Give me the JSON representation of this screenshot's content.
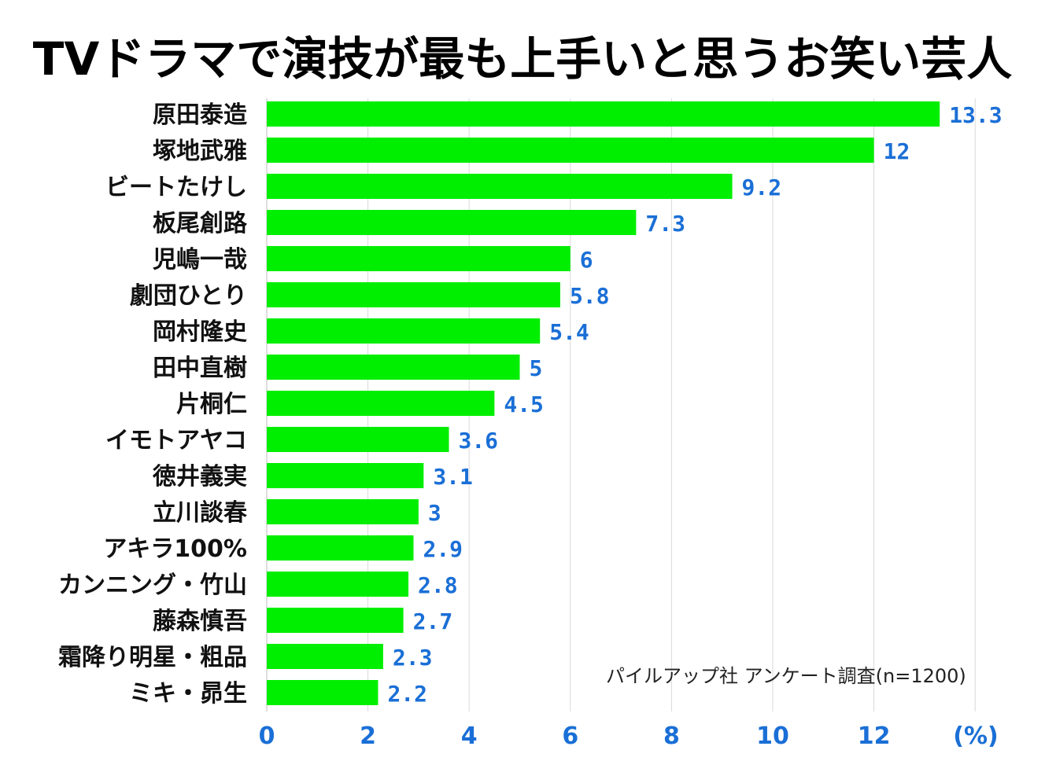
{
  "chart_data": {
    "type": "bar",
    "orientation": "horizontal",
    "title": "TVドラマで演技が最も上手いと思うお笑い芸人",
    "categories": [
      "原田泰造",
      "塚地武雅",
      "ビートたけし",
      "板尾創路",
      "児嶋一哉",
      "劇団ひとり",
      "岡村隆史",
      "田中直樹",
      "片桐仁",
      "イモトアヤコ",
      "徳井義実",
      "立川談春",
      "アキラ100%",
      "カンニング・竹山",
      "藤森慎吾",
      "霜降り明星・粗品",
      "ミキ・昴生"
    ],
    "values": [
      13.3,
      12,
      9.2,
      7.3,
      6,
      5.8,
      5.4,
      5,
      4.5,
      3.6,
      3.1,
      3,
      2.9,
      2.8,
      2.7,
      2.3,
      2.2
    ],
    "value_labels": [
      "13.3",
      "12",
      "9.2",
      "7.3",
      "6",
      "5.8",
      "5.4",
      "5",
      "4.5",
      "3.6",
      "3.1",
      "3",
      "2.9",
      "2.8",
      "2.7",
      "2.3",
      "2.2"
    ],
    "xticks": [
      "0",
      "2",
      "4",
      "6",
      "8",
      "10",
      "12"
    ],
    "xunit": "(%)",
    "xlim": [
      0,
      14
    ],
    "grid": true,
    "bar_color": "#00ee00",
    "label_color": "#1a6fd6",
    "note": "パイルアップ社 アンケート調査(n=1200)"
  }
}
